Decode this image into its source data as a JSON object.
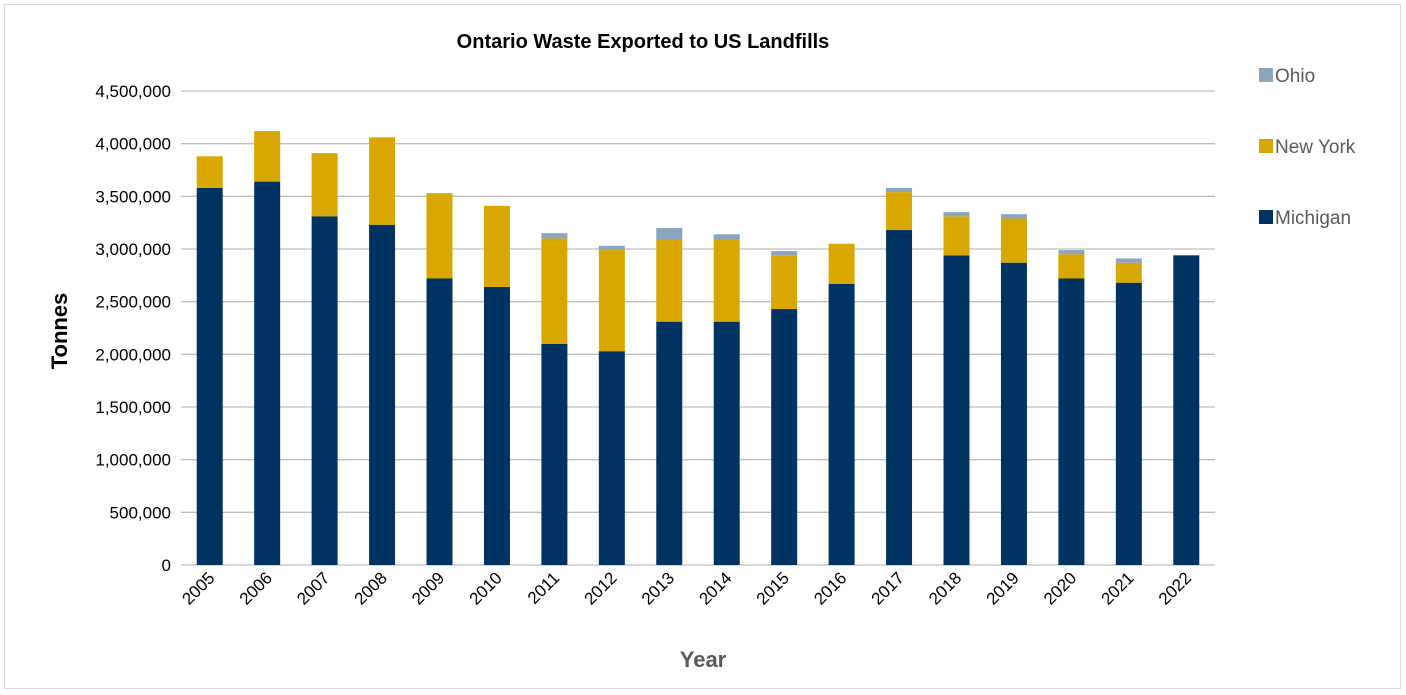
{
  "chart_data": {
    "type": "bar",
    "stacked": true,
    "title": "Ontario Waste Exported to US Landfills",
    "xlabel": "Year",
    "ylabel": "Tonnes",
    "ylim": [
      0,
      4500000
    ],
    "yticks": [
      0,
      500000,
      1000000,
      1500000,
      2000000,
      2500000,
      3000000,
      3500000,
      4000000,
      4500000
    ],
    "ytick_labels": [
      "0",
      "500,000",
      "1,000,000",
      "1,500,000",
      "2,000,000",
      "2,500,000",
      "3,000,000",
      "3,500,000",
      "4,000,000",
      "4,500,000"
    ],
    "grid": true,
    "legend_position": "right",
    "categories": [
      "2005",
      "2006",
      "2007",
      "2008",
      "2009",
      "2010",
      "2011",
      "2012",
      "2013",
      "2014",
      "2015",
      "2016",
      "2017",
      "2018",
      "2019",
      "2020",
      "2021",
      "2022"
    ],
    "series": [
      {
        "name": "Michigan",
        "color": "#003361",
        "values": [
          3580000,
          3640000,
          3310000,
          3230000,
          2720000,
          2640000,
          2100000,
          2030000,
          2310000,
          2310000,
          2430000,
          2670000,
          3180000,
          2940000,
          2870000,
          2720000,
          2680000,
          2940000
        ]
      },
      {
        "name": "New York",
        "color": "#d9a800",
        "values": [
          300000,
          480000,
          600000,
          830000,
          810000,
          770000,
          1000000,
          960000,
          780000,
          780000,
          510000,
          380000,
          360000,
          370000,
          420000,
          230000,
          190000,
          0
        ]
      },
      {
        "name": "Ohio",
        "color": "#8ba5be",
        "values": [
          0,
          0,
          0,
          0,
          0,
          0,
          50000,
          40000,
          110000,
          50000,
          40000,
          0,
          40000,
          40000,
          40000,
          40000,
          40000,
          0
        ]
      }
    ]
  }
}
